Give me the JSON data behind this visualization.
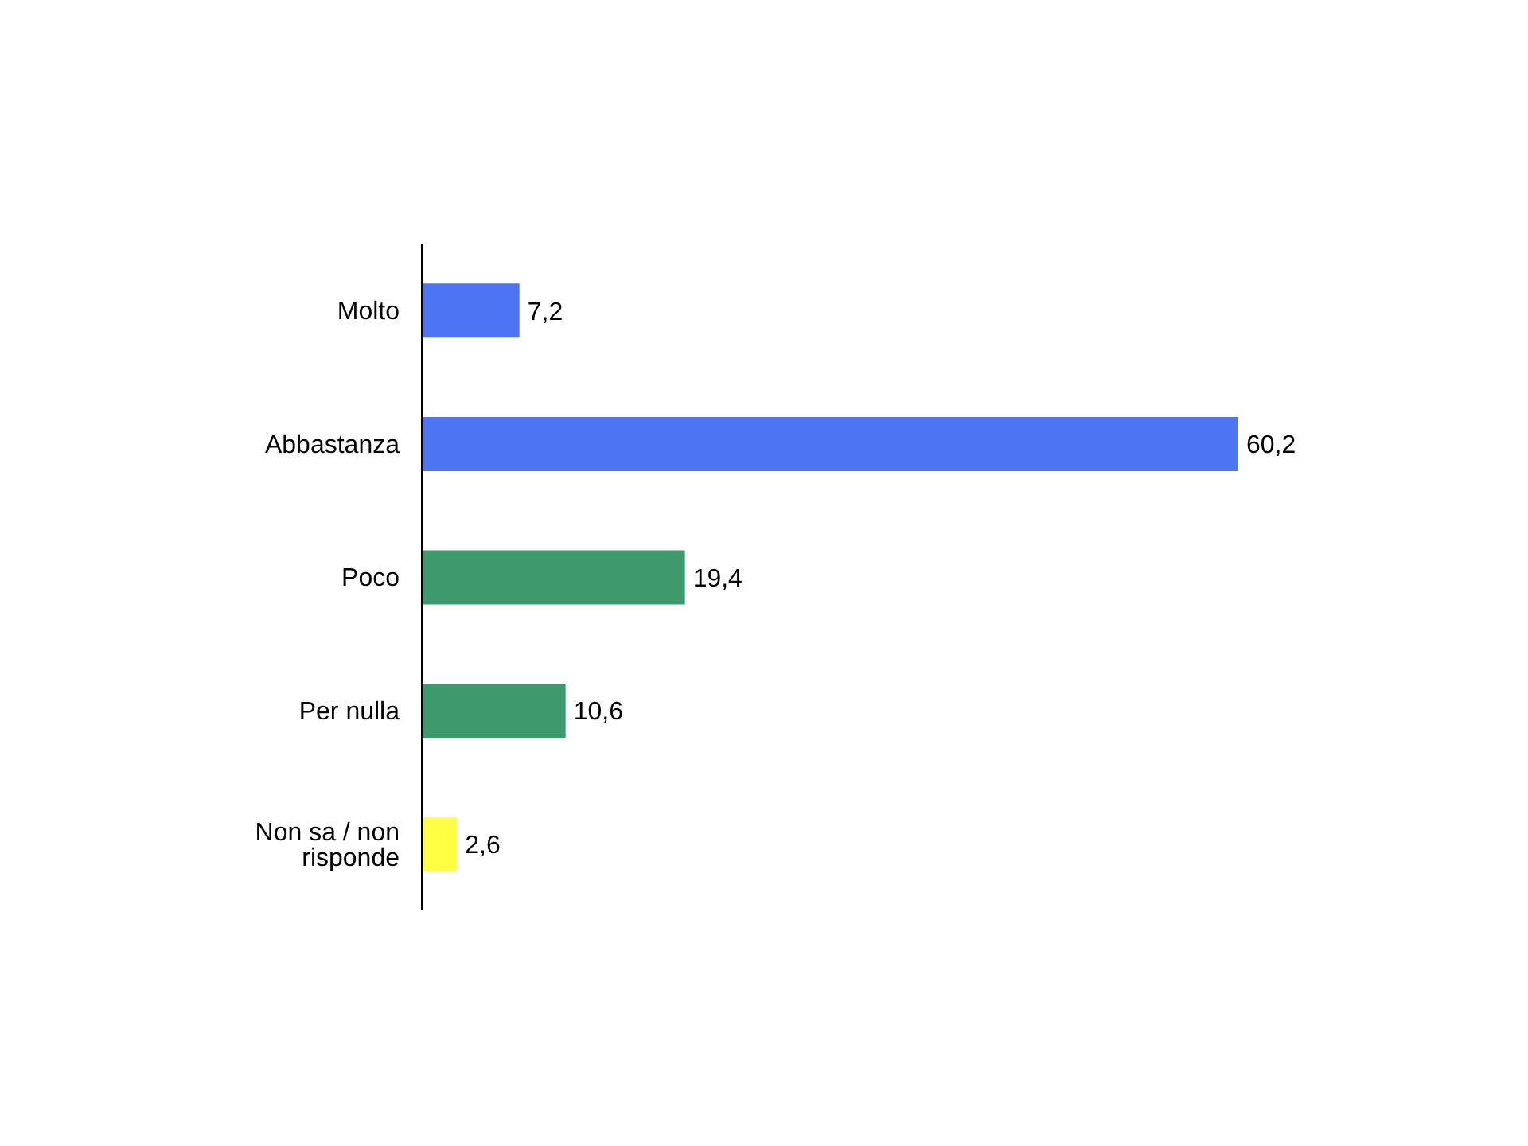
{
  "chart_data": {
    "type": "bar",
    "orientation": "horizontal",
    "categories": [
      "Molto",
      "Abbastanza",
      "Poco",
      "Per nulla",
      "Non sa / non risponde"
    ],
    "values": [
      7.2,
      60.2,
      19.4,
      10.6,
      2.6
    ],
    "colors": [
      "#4d74f2",
      "#4d74f2",
      "#3d9a6c",
      "#3d9a6c",
      "#ffff44"
    ],
    "value_labels": [
      "7,2",
      "60,2",
      "19,4",
      "10,6",
      "2,6"
    ],
    "grid": false,
    "legend": false
  }
}
